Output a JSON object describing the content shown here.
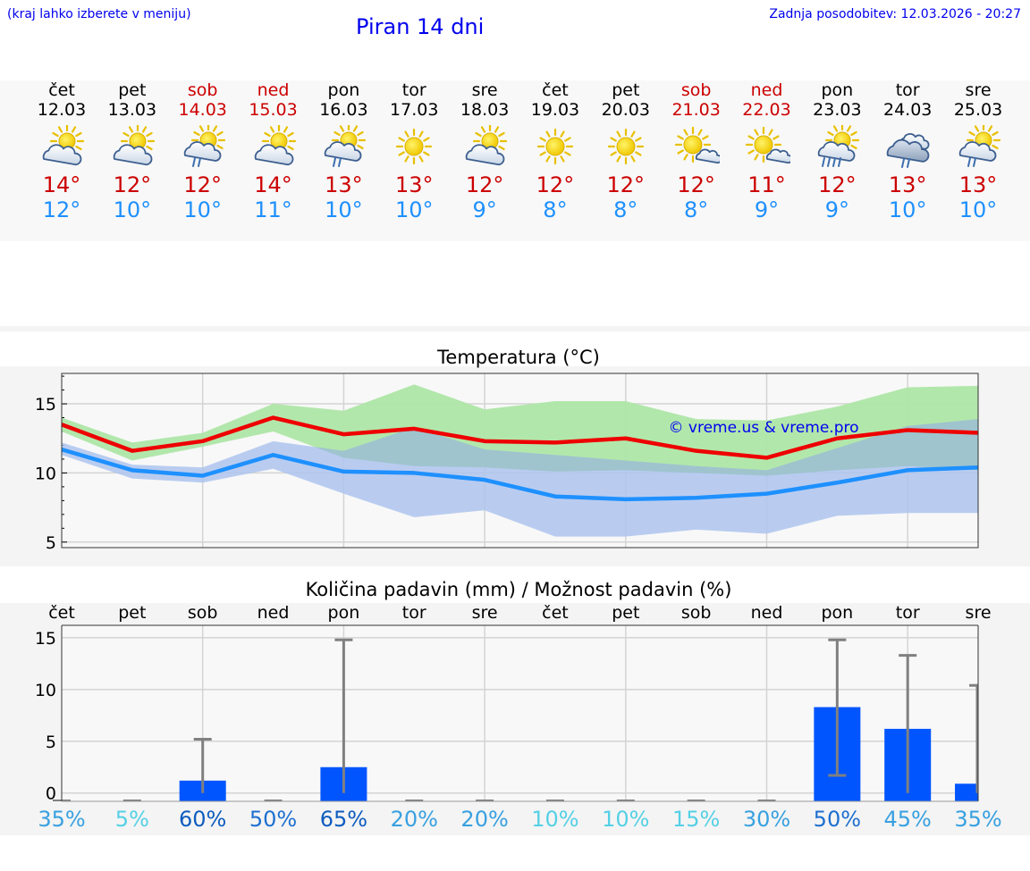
{
  "header": {
    "note": "(kraj lahko izberete v meniju)",
    "title": "Piran 14 dni",
    "updated": "Zadnja posodobitev: 12.03.2026 - 20:27"
  },
  "days": [
    {
      "name": "čet",
      "date": "12.03",
      "weekend": false,
      "icon": "partly-cloudy-sun-icon",
      "tmax": "14°",
      "tmin": "12°",
      "pct": "35%"
    },
    {
      "name": "pet",
      "date": "13.03",
      "weekend": false,
      "icon": "partly-cloudy-sun-icon",
      "tmax": "12°",
      "tmin": "10°",
      "pct": "5%"
    },
    {
      "name": "sob",
      "date": "14.03",
      "weekend": true,
      "icon": "sun-rain-icon",
      "tmax": "12°",
      "tmin": "10°",
      "pct": "60%"
    },
    {
      "name": "ned",
      "date": "15.03",
      "weekend": true,
      "icon": "partly-cloudy-sun-icon",
      "tmax": "14°",
      "tmin": "11°",
      "pct": "50%"
    },
    {
      "name": "pon",
      "date": "16.03",
      "weekend": false,
      "icon": "sun-rain-icon",
      "tmax": "13°",
      "tmin": "10°",
      "pct": "65%"
    },
    {
      "name": "tor",
      "date": "17.03",
      "weekend": false,
      "icon": "sun-icon",
      "tmax": "13°",
      "tmin": "10°",
      "pct": "20%"
    },
    {
      "name": "sre",
      "date": "18.03",
      "weekend": false,
      "icon": "partly-cloudy-sun-icon",
      "tmax": "12°",
      "tmin": "9°",
      "pct": "20%"
    },
    {
      "name": "čet",
      "date": "19.03",
      "weekend": false,
      "icon": "sun-icon",
      "tmax": "12°",
      "tmin": "8°",
      "pct": "10%"
    },
    {
      "name": "pet",
      "date": "20.03",
      "weekend": false,
      "icon": "sun-icon",
      "tmax": "12°",
      "tmin": "8°",
      "pct": "10%"
    },
    {
      "name": "sob",
      "date": "21.03",
      "weekend": true,
      "icon": "sun-small-cloud-icon",
      "tmax": "12°",
      "tmin": "8°",
      "pct": "15%"
    },
    {
      "name": "ned",
      "date": "22.03",
      "weekend": true,
      "icon": "sun-small-cloud-icon",
      "tmax": "11°",
      "tmin": "9°",
      "pct": "30%"
    },
    {
      "name": "pon",
      "date": "23.03",
      "weekend": false,
      "icon": "sun-heavy-rain-icon",
      "tmax": "12°",
      "tmin": "9°",
      "pct": "50%"
    },
    {
      "name": "tor",
      "date": "24.03",
      "weekend": false,
      "icon": "cloud-rain-icon",
      "tmax": "13°",
      "tmin": "10°",
      "pct": "45%"
    },
    {
      "name": "sre",
      "date": "25.03",
      "weekend": false,
      "icon": "sun-rain-icon",
      "tmax": "13°",
      "tmin": "10°",
      "pct": "35%"
    }
  ],
  "colors": {
    "title_blue": "#0000ee",
    "weekend_red": "#cc0000",
    "tmax_line": "#ee0000",
    "tmin_line": "#1e90ff",
    "green_band": "#aee6a6",
    "blue_band": "#aec4ee",
    "bar": "#0055ff",
    "error": "#808080"
  },
  "chart_data": [
    {
      "type": "line",
      "title": "Temperatura (°C)",
      "watermark": "© vreme.us & vreme.pro",
      "ylim": [
        4.6,
        17.2
      ],
      "yticks": [
        5,
        10,
        15
      ],
      "x": [
        0,
        1,
        2,
        3,
        4,
        5,
        6,
        7,
        8,
        9,
        10,
        11,
        12,
        13
      ],
      "series": [
        {
          "name": "max",
          "values": [
            13.5,
            11.6,
            12.3,
            14.0,
            12.8,
            13.2,
            12.3,
            12.2,
            12.5,
            11.6,
            11.1,
            12.5,
            13.1,
            12.9
          ],
          "band_low": [
            13.0,
            10.9,
            11.9,
            13.0,
            11.1,
            10.5,
            10.4,
            10.1,
            10.2,
            10.0,
            9.8,
            10.2,
            10.5,
            10.2
          ],
          "band_high": [
            14.0,
            12.2,
            12.9,
            15.0,
            14.5,
            16.4,
            14.6,
            15.2,
            15.2,
            13.9,
            13.8,
            14.8,
            16.2,
            16.3
          ]
        },
        {
          "name": "min",
          "values": [
            11.7,
            10.2,
            9.8,
            11.3,
            10.1,
            10.0,
            9.5,
            8.3,
            8.1,
            8.2,
            8.5,
            9.3,
            10.2,
            10.4
          ],
          "band_low": [
            11.3,
            9.6,
            9.3,
            10.3,
            8.5,
            6.8,
            7.3,
            5.4,
            5.4,
            5.9,
            5.6,
            6.9,
            7.1,
            7.1
          ],
          "band_high": [
            12.2,
            10.6,
            10.4,
            12.3,
            11.6,
            13.3,
            11.7,
            11.3,
            10.9,
            10.5,
            10.2,
            11.8,
            13.4,
            13.9
          ]
        }
      ]
    },
    {
      "type": "bar",
      "title": "Količina padavin (mm) / Možnost padavin (%)",
      "categories": [
        "čet",
        "pet",
        "sob",
        "ned",
        "pon",
        "tor",
        "sre",
        "čet",
        "pet",
        "sob",
        "ned",
        "pon",
        "tor",
        "sre"
      ],
      "ylim": [
        -0.8,
        16.2
      ],
      "yticks": [
        0,
        5,
        10,
        15
      ],
      "values": [
        0,
        0,
        1.2,
        0,
        2.5,
        0,
        0,
        0,
        0,
        0,
        0,
        8.3,
        6.2,
        0.9
      ],
      "error_high": [
        0,
        0,
        5.2,
        0,
        14.8,
        0,
        0,
        0,
        0,
        0,
        0,
        14.8,
        13.3,
        10.4
      ],
      "error_low": [
        0,
        0,
        0,
        0,
        0,
        0,
        0,
        0,
        0,
        0,
        0,
        1.7,
        0,
        0
      ],
      "chance": [
        "35%",
        "5%",
        "60%",
        "50%",
        "65%",
        "20%",
        "20%",
        "10%",
        "10%",
        "15%",
        "30%",
        "50%",
        "45%",
        "35%"
      ]
    }
  ]
}
